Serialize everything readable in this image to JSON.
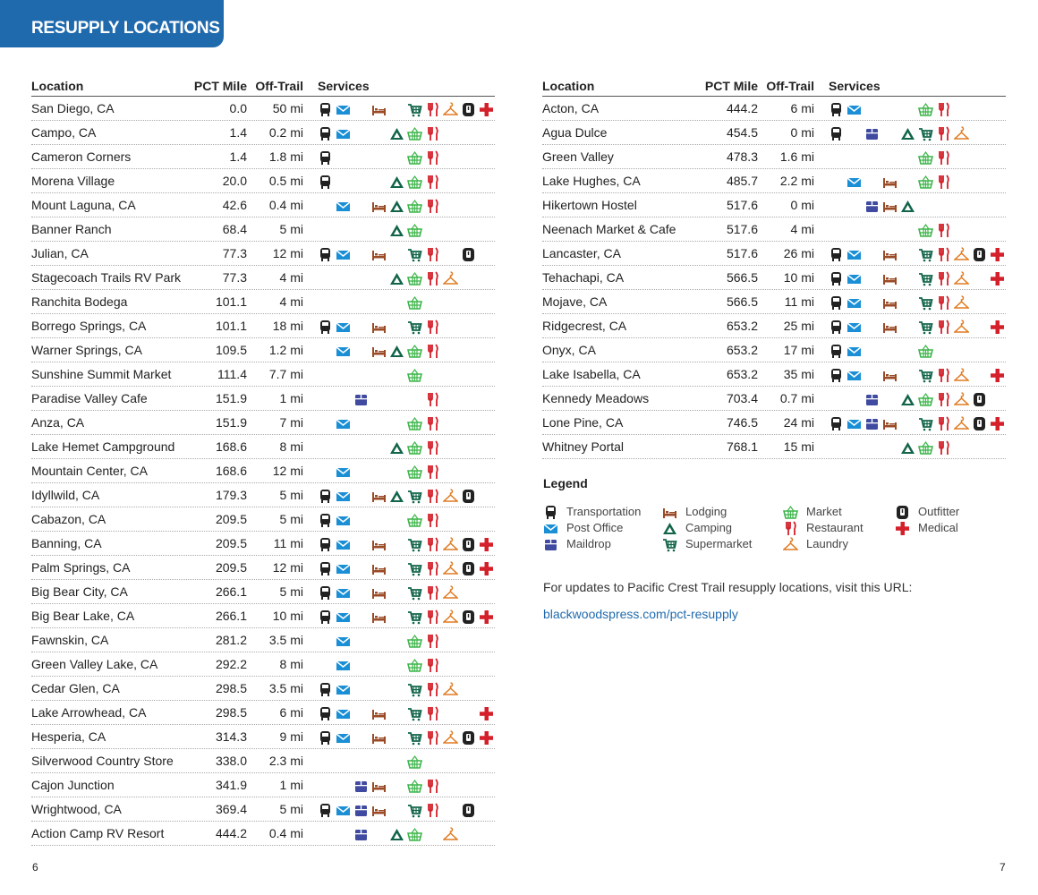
{
  "banner": "RESUPPLY LOCATIONS",
  "headers": {
    "location": "Location",
    "mile": "PCT Mile",
    "off": "Off-Trail",
    "services": "Services"
  },
  "colors": {
    "T": "#222222",
    "P": "#1a8fd6",
    "D": "#3f4aa0",
    "L": "#9a4a25",
    "C": "#12654a",
    "S": "#12654a",
    "M": "#3db54a",
    "R": "#d4202a",
    "W": "#e07b22",
    "O": "#222222",
    "X": "#d4202a"
  },
  "left": [
    {
      "name": "San Diego, CA",
      "mile": "0.0",
      "off": "50 mi",
      "svc": "TPLSRWOX"
    },
    {
      "name": "Campo, CA",
      "mile": "1.4",
      "off": "0.2 mi",
      "svc": "TPCMR"
    },
    {
      "name": "Cameron Corners",
      "mile": "1.4",
      "off": "1.8 mi",
      "svc": "TMR"
    },
    {
      "name": "Morena Village",
      "mile": "20.0",
      "off": "0.5 mi",
      "svc": "TCMR"
    },
    {
      "name": "Mount Laguna, CA",
      "mile": "42.6",
      "off": "0.4 mi",
      "svc": "PLCMR"
    },
    {
      "name": "Banner Ranch",
      "mile": "68.4",
      "off": "5 mi",
      "svc": "CM"
    },
    {
      "name": "Julian, CA",
      "mile": "77.3",
      "off": "12 mi",
      "svc": "TPLSRO"
    },
    {
      "name": "Stagecoach Trails RV Park",
      "mile": "77.3",
      "off": "4 mi",
      "svc": "CMRW"
    },
    {
      "name": "Ranchita Bodega",
      "mile": "101.1",
      "off": "4 mi",
      "svc": "M"
    },
    {
      "name": "Borrego Springs, CA",
      "mile": "101.1",
      "off": "18 mi",
      "svc": "TPLSR"
    },
    {
      "name": "Warner Springs, CA",
      "mile": "109.5",
      "off": "1.2 mi",
      "svc": "PLCMR"
    },
    {
      "name": "Sunshine Summit Market",
      "mile": "111.4",
      "off": "7.7 mi",
      "svc": "M"
    },
    {
      "name": "Paradise Valley Cafe",
      "mile": "151.9",
      "off": "1 mi",
      "svc": "DR"
    },
    {
      "name": "Anza, CA",
      "mile": "151.9",
      "off": "7 mi",
      "svc": "PMR"
    },
    {
      "name": "Lake Hemet Campground",
      "mile": "168.6",
      "off": "8 mi",
      "svc": "CMR"
    },
    {
      "name": "Mountain Center, CA",
      "mile": "168.6",
      "off": "12 mi",
      "svc": "PMR"
    },
    {
      "name": "Idyllwild, CA",
      "mile": "179.3",
      "off": "5 mi",
      "svc": "TPLCSRWO"
    },
    {
      "name": "Cabazon, CA",
      "mile": "209.5",
      "off": "5 mi",
      "svc": "TPMR"
    },
    {
      "name": "Banning, CA",
      "mile": "209.5",
      "off": "11 mi",
      "svc": "TPLSRWOX"
    },
    {
      "name": "Palm Springs, CA",
      "mile": "209.5",
      "off": "12 mi",
      "svc": "TPLSRWOX"
    },
    {
      "name": "Big Bear City, CA",
      "mile": "266.1",
      "off": "5 mi",
      "svc": "TPLSRW"
    },
    {
      "name": "Big Bear Lake, CA",
      "mile": "266.1",
      "off": "10 mi",
      "svc": "TPLSRWOX"
    },
    {
      "name": "Fawnskin, CA",
      "mile": "281.2",
      "off": "3.5 mi",
      "svc": "PMR"
    },
    {
      "name": "Green Valley Lake, CA",
      "mile": "292.2",
      "off": "8 mi",
      "svc": "PMR"
    },
    {
      "name": "Cedar Glen, CA",
      "mile": "298.5",
      "off": "3.5 mi",
      "svc": "TPSRW"
    },
    {
      "name": "Lake Arrowhead, CA",
      "mile": "298.5",
      "off": "6 mi",
      "svc": "TPLSRX"
    },
    {
      "name": "Hesperia, CA",
      "mile": "314.3",
      "off": "9 mi",
      "svc": "TPLSRWOX"
    },
    {
      "name": "Silverwood Country Store",
      "mile": "338.0",
      "off": "2.3 mi",
      "svc": "M"
    },
    {
      "name": "Cajon Junction",
      "mile": "341.9",
      "off": "1 mi",
      "svc": "DLMR"
    },
    {
      "name": "Wrightwood, CA",
      "mile": "369.4",
      "off": "5 mi",
      "svc": "TPDLSRO"
    },
    {
      "name": "Action Camp RV Resort",
      "mile": "444.2",
      "off": "0.4 mi",
      "svc": "DCMW"
    }
  ],
  "right": [
    {
      "name": "Acton, CA",
      "mile": "444.2",
      "off": "6 mi",
      "svc": "TPMR"
    },
    {
      "name": "Agua Dulce",
      "mile": "454.5",
      "off": "0 mi",
      "svc": "TDCSRW"
    },
    {
      "name": "Green Valley",
      "mile": "478.3",
      "off": "1.6 mi",
      "svc": "MR"
    },
    {
      "name": "Lake Hughes, CA",
      "mile": "485.7",
      "off": "2.2 mi",
      "svc": "PLMR"
    },
    {
      "name": "Hikertown Hostel",
      "mile": "517.6",
      "off": "0 mi",
      "svc": "DLC"
    },
    {
      "name": "Neenach Market & Cafe",
      "mile": "517.6",
      "off": "4 mi",
      "svc": "MR"
    },
    {
      "name": "Lancaster, CA",
      "mile": "517.6",
      "off": "26 mi",
      "svc": "TPLSRWOX"
    },
    {
      "name": "Tehachapi, CA",
      "mile": "566.5",
      "off": "10 mi",
      "svc": "TPLSRWX"
    },
    {
      "name": "Mojave, CA",
      "mile": "566.5",
      "off": "11 mi",
      "svc": "TPLSRW"
    },
    {
      "name": "Ridgecrest, CA",
      "mile": "653.2",
      "off": "25 mi",
      "svc": "TPLSRWX"
    },
    {
      "name": "Onyx, CA",
      "mile": "653.2",
      "off": "17 mi",
      "svc": "TPM"
    },
    {
      "name": "Lake Isabella, CA",
      "mile": "653.2",
      "off": "35 mi",
      "svc": "TPLSRWX"
    },
    {
      "name": "Kennedy Meadows",
      "mile": "703.4",
      "off": "0.7 mi",
      "svc": "DCMRWO"
    },
    {
      "name": "Lone Pine, CA",
      "mile": "746.5",
      "off": "24 mi",
      "svc": "TPDLSRWOX"
    },
    {
      "name": "Whitney Portal",
      "mile": "768.1",
      "off": "15 mi",
      "svc": "CMR"
    }
  ],
  "legend": {
    "title": "Legend",
    "items": [
      {
        "code": "T",
        "label": "Transportation"
      },
      {
        "code": "P",
        "label": "Post Office"
      },
      {
        "code": "D",
        "label": "Maildrop"
      },
      {
        "code": "L",
        "label": "Lodging"
      },
      {
        "code": "C",
        "label": "Camping"
      },
      {
        "code": "S",
        "label": "Supermarket"
      },
      {
        "code": "M",
        "label": "Market"
      },
      {
        "code": "R",
        "label": "Restaurant"
      },
      {
        "code": "W",
        "label": "Laundry"
      },
      {
        "code": "O",
        "label": "Outfitter"
      },
      {
        "code": "X",
        "label": "Medical"
      }
    ]
  },
  "note": "For updates to Pacific Crest Trail resupply locations, visit this URL:",
  "link": "blackwoodspress.com/pct-resupply",
  "pages": {
    "left": "6",
    "right": "7"
  }
}
